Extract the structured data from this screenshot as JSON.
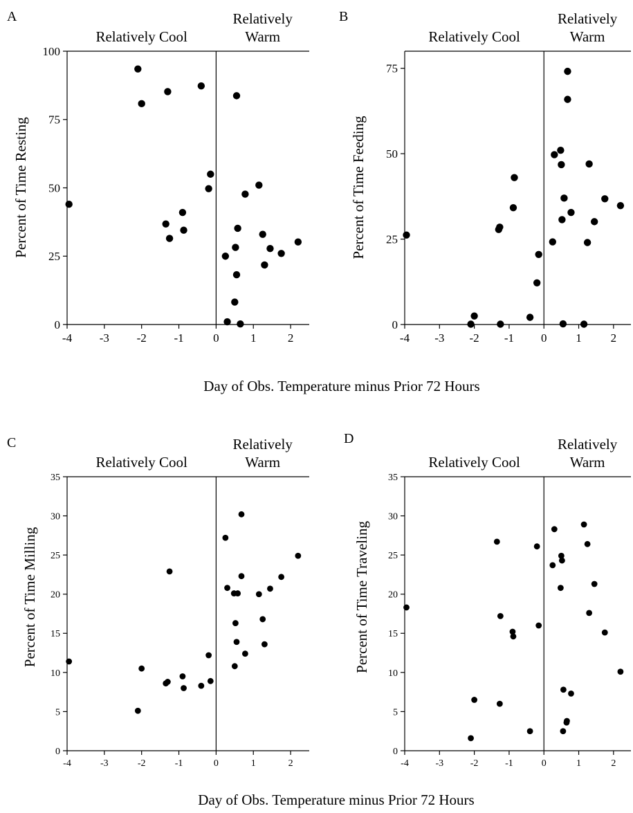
{
  "figure": {
    "top_xlabel": "Day of Obs. Temperature minus Prior 72 Hours",
    "bottom_xlabel": "Day of Obs. Temperature minus Prior 72 Hours",
    "point_color": "#000000"
  },
  "chart_data": [
    {
      "panel": "A",
      "type": "scatter",
      "region_left": "Relatively Cool",
      "region_right_line1": "Relatively",
      "region_right_line2": "Warm",
      "ylabel": "Percent of Time Resting",
      "xlim": [
        -4,
        2.5
      ],
      "ylim": [
        0,
        100
      ],
      "xticks": [
        -4,
        -3,
        -2,
        -1,
        0,
        1,
        2
      ],
      "yticks": [
        0,
        25,
        50,
        75,
        100
      ],
      "divider_x": 0,
      "points": [
        [
          -3.95,
          44
        ],
        [
          -2.1,
          93.5
        ],
        [
          -2.0,
          80.8
        ],
        [
          -1.3,
          85.2
        ],
        [
          -0.4,
          87.3
        ],
        [
          -1.35,
          36.8
        ],
        [
          -1.25,
          31.5
        ],
        [
          -0.9,
          41
        ],
        [
          -0.87,
          34.5
        ],
        [
          -0.2,
          49.7
        ],
        [
          -0.15,
          55
        ],
        [
          0.55,
          83.7
        ],
        [
          0.25,
          25
        ],
        [
          0.3,
          1
        ],
        [
          0.5,
          8.2
        ],
        [
          0.52,
          28.2
        ],
        [
          0.55,
          18.2
        ],
        [
          0.58,
          35.2
        ],
        [
          0.65,
          0.2
        ],
        [
          0.78,
          47.7
        ],
        [
          1.15,
          51
        ],
        [
          1.25,
          33
        ],
        [
          1.3,
          21.8
        ],
        [
          1.45,
          27.8
        ],
        [
          1.75,
          26
        ],
        [
          2.2,
          30.2
        ]
      ]
    },
    {
      "panel": "B",
      "type": "scatter",
      "region_left": "Relatively Cool",
      "region_right_line1": "Relatively",
      "region_right_line2": "Warm",
      "ylabel": "Percent of Time Feeding",
      "xlim": [
        -4,
        2.5
      ],
      "ylim": [
        0,
        80
      ],
      "xticks": [
        -4,
        -3,
        -2,
        -1,
        0,
        1,
        2
      ],
      "yticks": [
        0,
        25,
        50,
        75
      ],
      "divider_x": 0,
      "points": [
        [
          -3.95,
          26.2
        ],
        [
          -2.1,
          0.1
        ],
        [
          -2.0,
          2.5
        ],
        [
          -1.3,
          27.8
        ],
        [
          -1.27,
          28.5
        ],
        [
          -1.25,
          0.1
        ],
        [
          -0.88,
          34.2
        ],
        [
          -0.85,
          43
        ],
        [
          -0.4,
          2.1
        ],
        [
          -0.2,
          12.2
        ],
        [
          -0.15,
          20.5
        ],
        [
          0.25,
          24.2
        ],
        [
          0.3,
          49.7
        ],
        [
          0.48,
          51
        ],
        [
          0.5,
          46.8
        ],
        [
          0.52,
          30.7
        ],
        [
          0.55,
          0.2
        ],
        [
          0.58,
          37
        ],
        [
          0.68,
          65.9
        ],
        [
          0.68,
          74.1
        ],
        [
          0.78,
          32.8
        ],
        [
          1.15,
          0.1
        ],
        [
          1.25,
          24
        ],
        [
          1.3,
          47
        ],
        [
          1.45,
          30.1
        ],
        [
          1.75,
          36.8
        ],
        [
          2.2,
          34.8
        ]
      ]
    },
    {
      "panel": "C",
      "type": "scatter",
      "region_left": "Relatively Cool",
      "region_right_line1": "Relatively",
      "region_right_line2": "Warm",
      "ylabel": "Percent of Time Milling",
      "xlim": [
        -4,
        2.5
      ],
      "ylim": [
        0,
        35
      ],
      "xticks": [
        -4,
        -3,
        -2,
        -1,
        0,
        1,
        2
      ],
      "yticks": [
        0,
        5,
        10,
        15,
        20,
        25,
        30,
        35
      ],
      "divider_x": 0,
      "points": [
        [
          -3.95,
          11.4
        ],
        [
          -2.1,
          5.1
        ],
        [
          -2.0,
          10.5
        ],
        [
          -1.35,
          8.6
        ],
        [
          -1.3,
          8.8
        ],
        [
          -1.25,
          22.9
        ],
        [
          -0.9,
          9.5
        ],
        [
          -0.87,
          8
        ],
        [
          -0.4,
          8.3
        ],
        [
          -0.2,
          12.2
        ],
        [
          -0.15,
          8.9
        ],
        [
          0.25,
          27.2
        ],
        [
          0.3,
          20.8
        ],
        [
          0.48,
          20.1
        ],
        [
          0.5,
          10.8
        ],
        [
          0.52,
          16.3
        ],
        [
          0.55,
          13.9
        ],
        [
          0.58,
          20.1
        ],
        [
          0.68,
          22.3
        ],
        [
          0.68,
          30.2
        ],
        [
          0.78,
          12.4
        ],
        [
          1.15,
          20
        ],
        [
          1.25,
          16.8
        ],
        [
          1.3,
          13.6
        ],
        [
          1.45,
          20.7
        ],
        [
          1.75,
          22.2
        ],
        [
          2.2,
          24.9
        ]
      ]
    },
    {
      "panel": "D",
      "type": "scatter",
      "region_left": "Relatively Cool",
      "region_right_line1": "Relatively",
      "region_right_line2": "Warm",
      "ylabel": "Percent of Time Traveling",
      "xlim": [
        -4,
        2.5
      ],
      "ylim": [
        0,
        35
      ],
      "xticks": [
        -4,
        -3,
        -2,
        -1,
        0,
        1,
        2
      ],
      "yticks": [
        0,
        5,
        10,
        15,
        20,
        25,
        30,
        35
      ],
      "divider_x": 0,
      "points": [
        [
          -3.95,
          18.3
        ],
        [
          -2.1,
          1.6
        ],
        [
          -2.0,
          6.5
        ],
        [
          -1.35,
          26.7
        ],
        [
          -1.27,
          6
        ],
        [
          -1.25,
          17.2
        ],
        [
          -0.9,
          15.2
        ],
        [
          -0.88,
          14.6
        ],
        [
          -0.4,
          2.5
        ],
        [
          -0.2,
          26.1
        ],
        [
          -0.15,
          16
        ],
        [
          0.25,
          23.7
        ],
        [
          0.3,
          28.3
        ],
        [
          0.48,
          20.8
        ],
        [
          0.5,
          24.9
        ],
        [
          0.52,
          24.3
        ],
        [
          0.55,
          2.5
        ],
        [
          0.56,
          7.8
        ],
        [
          0.65,
          3.6
        ],
        [
          0.66,
          3.8
        ],
        [
          0.78,
          7.3
        ],
        [
          1.15,
          28.9
        ],
        [
          1.25,
          26.4
        ],
        [
          1.3,
          17.6
        ],
        [
          1.45,
          21.3
        ],
        [
          1.75,
          15.1
        ],
        [
          2.2,
          10.1
        ]
      ]
    }
  ]
}
